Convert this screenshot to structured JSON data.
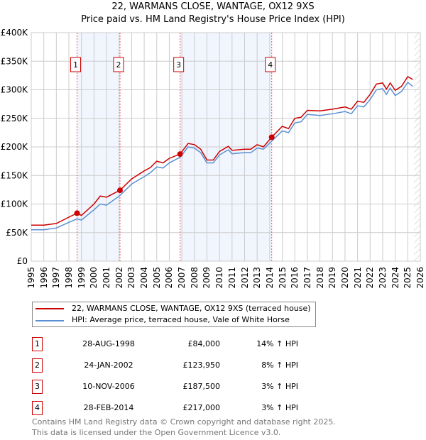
{
  "chart_data": {
    "type": "line",
    "title": "22, WARMANS CLOSE, WANTAGE, OX12 9XS",
    "subtitle": "Price paid vs. HM Land Registry's House Price Index (HPI)",
    "xlim": [
      1995,
      2026
    ],
    "ylim": [
      0,
      400000
    ],
    "x_ticks": [
      "1995",
      "1996",
      "1997",
      "1998",
      "1999",
      "2000",
      "2001",
      "2002",
      "2003",
      "2004",
      "2005",
      "2006",
      "2007",
      "2008",
      "2009",
      "2010",
      "2011",
      "2012",
      "2013",
      "2014",
      "2015",
      "2016",
      "2017",
      "2018",
      "2019",
      "2020",
      "2021",
      "2022",
      "2023",
      "2024",
      "2025",
      "2026"
    ],
    "y_ticks": [
      {
        "v": 0,
        "label": "£0"
      },
      {
        "v": 50000,
        "label": "£50K"
      },
      {
        "v": 100000,
        "label": "£100K"
      },
      {
        "v": 150000,
        "label": "£150K"
      },
      {
        "v": 200000,
        "label": "£200K"
      },
      {
        "v": 250000,
        "label": "£250K"
      },
      {
        "v": 300000,
        "label": "£300K"
      },
      {
        "v": 350000,
        "label": "£350K"
      },
      {
        "v": 400000,
        "label": "£400K"
      }
    ],
    "grid": true,
    "series": [
      {
        "name": "22, WARMANS CLOSE, WANTAGE, OX12 9XS (terraced house)",
        "color": "#cc0000",
        "x": [
          1995,
          1996,
          1997,
          1998,
          1998.65,
          1999,
          2000,
          2000.5,
          2001,
          2002.07,
          2003,
          2004,
          2004.5,
          2005,
          2005.5,
          2006,
          2006.86,
          2007.5,
          2008,
          2008.5,
          2009,
          2009.5,
          2010,
          2010.7,
          2011,
          2012,
          2012.5,
          2013,
          2013.5,
          2014.16,
          2015,
          2015.5,
          2016,
          2016.5,
          2017,
          2018,
          2019,
          2020,
          2020.5,
          2021,
          2021.5,
          2022,
          2022.5,
          2023,
          2023.3,
          2023.6,
          2024,
          2024.5,
          2025,
          2025.4
        ],
        "y": [
          63,
          63,
          66,
          77,
          84,
          80,
          100,
          114,
          112,
          124,
          144,
          158,
          164,
          175,
          172,
          180,
          187.5,
          206,
          204,
          196,
          177,
          177,
          192,
          201,
          194,
          196,
          196,
          204,
          200,
          217,
          236,
          232,
          250,
          252,
          264,
          263,
          266,
          270,
          266,
          280,
          278,
          292,
          310,
          312,
          301,
          312,
          299,
          306,
          323,
          318
        ]
      },
      {
        "name": "HPI: Average price, terraced house, Vale of White Horse",
        "color": "#5b8fd4",
        "x": [
          1995,
          1996,
          1997,
          1998,
          1998.65,
          1999,
          2000,
          2000.5,
          2001,
          2002.07,
          2003,
          2004,
          2004.5,
          2005,
          2005.5,
          2006,
          2006.86,
          2007.5,
          2008,
          2008.5,
          2009,
          2009.5,
          2010,
          2010.7,
          2011,
          2012,
          2012.5,
          2013,
          2013.5,
          2014.16,
          2015,
          2015.5,
          2016,
          2016.5,
          2017,
          2018,
          2019,
          2020,
          2020.5,
          2021,
          2021.5,
          2022,
          2022.5,
          2023,
          2023.3,
          2023.6,
          2024,
          2024.5,
          2025,
          2025.4
        ],
        "y": [
          55,
          55,
          58,
          68,
          74,
          72,
          90,
          100,
          98,
          115,
          135,
          148,
          155,
          165,
          163,
          172,
          182,
          200,
          198,
          190,
          172,
          172,
          186,
          195,
          188,
          190,
          190,
          198,
          196,
          210,
          228,
          225,
          242,
          244,
          257,
          255,
          258,
          262,
          258,
          272,
          270,
          283,
          300,
          302,
          292,
          303,
          290,
          297,
          313,
          306
        ]
      }
    ],
    "y_units": "thousands GBP",
    "sales": [
      {
        "n": "1",
        "x": 1998.65,
        "date": "28-AUG-1998",
        "price": "£84,000",
        "value": 84,
        "hpi": "14% ↑ HPI"
      },
      {
        "n": "2",
        "x": 2002.07,
        "date": "24-JAN-2002",
        "price": "£123,950",
        "value": 123.95,
        "hpi": "8% ↑ HPI"
      },
      {
        "n": "3",
        "x": 2006.86,
        "date": "10-NOV-2006",
        "price": "£187,500",
        "value": 187.5,
        "hpi": "3% ↑ HPI"
      },
      {
        "n": "4",
        "x": 2014.16,
        "date": "28-FEB-2014",
        "price": "£217,000",
        "value": 217,
        "hpi": "3% ↑ HPI"
      }
    ],
    "forecast_start": 2025.5
  },
  "legend": {
    "property": "22, WARMANS CLOSE, WANTAGE, OX12 9XS (terraced house)",
    "hpi": "HPI: Average price, terraced house, Vale of White Horse"
  },
  "footer": {
    "line1": "Contains HM Land Registry data © Crown copyright and database right 2025.",
    "line2": "This data is licensed under the Open Government Licence v3.0."
  }
}
